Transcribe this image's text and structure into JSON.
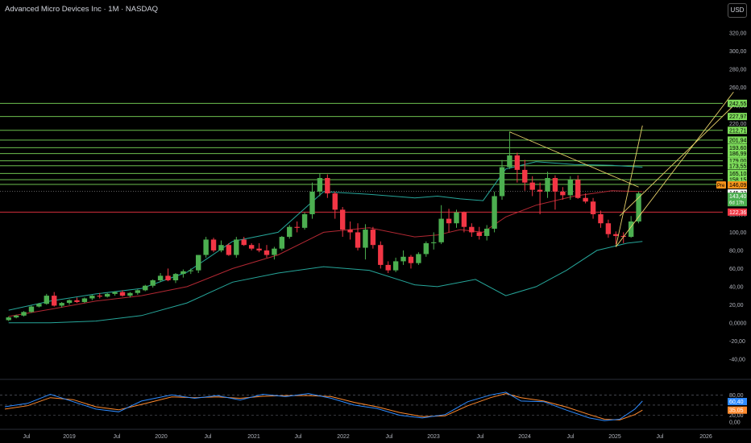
{
  "header": {
    "title": "Advanced Micro Devices Inc · 1M · NASDAQ",
    "currency": "USD"
  },
  "colors": {
    "background": "#000000",
    "up": "#4caf50",
    "down": "#f23645",
    "hline_green": "#7ddc5a",
    "hline_red": "#f23645",
    "ma": "#b22833",
    "band": "#26a69a",
    "trend": "#e8d16a",
    "rsi_k": "#2e8bff",
    "rsi_d": "#ff8a2e",
    "axis_text": "#b2b5be"
  },
  "chart_data": [
    {
      "type": "candlestick",
      "title": "Advanced Micro Devices Inc · 1M · NASDAQ",
      "y_axis_ticks": [
        "320,00",
        "300,00",
        "280,00",
        "260,00",
        "240,00",
        "220,00",
        "200,00",
        "180,00",
        "160,00",
        "140,00",
        "120,00",
        "100,00",
        "80,00",
        "60,00",
        "40,00",
        "20,00",
        "0,0000",
        "-20,00",
        "-40,00"
      ],
      "x_axis_ticks": [
        "Jul",
        "2019",
        "Jul",
        "2020",
        "Jul",
        "2021",
        "Jul",
        "2022",
        "Jul",
        "2023",
        "Jul",
        "2024",
        "Jul",
        "2025",
        "Jul",
        "2026"
      ],
      "ylim": [
        -50,
        330
      ],
      "horizontal_levels_green": [
        "242,55",
        "227,97",
        "212,71",
        "201,94",
        "193,60",
        "186,99",
        "179,00",
        "173,55",
        "165,10",
        "158,15",
        "152,94"
      ],
      "horizontal_level_red": "122,36",
      "price_badges": [
        {
          "label": "Pre",
          "value": "146,09",
          "color": "#f7931a"
        },
        {
          "value": "145,23",
          "color": "#ffffff"
        },
        {
          "value": "143,40",
          "sub": "6d 17h",
          "color": "#4caf50"
        },
        {
          "value": "122,36",
          "color": "#f23645"
        }
      ],
      "candles": [
        [
          0.5,
          3,
          7,
          2,
          6
        ],
        [
          1.5,
          6,
          9,
          5,
          8
        ],
        [
          2.5,
          8,
          13,
          7,
          12
        ],
        [
          3.5,
          12,
          19,
          11,
          18
        ],
        [
          4.5,
          18,
          22,
          17,
          21
        ],
        [
          5.5,
          21,
          32,
          20,
          30
        ],
        [
          6.5,
          30,
          34,
          18,
          19
        ],
        [
          7.5,
          19,
          23,
          17,
          22
        ],
        [
          8.5,
          22,
          26,
          20,
          25
        ],
        [
          9.5,
          25,
          28,
          22,
          23
        ],
        [
          10.5,
          23,
          28,
          22,
          27
        ],
        [
          11.5,
          27,
          31,
          25,
          30
        ],
        [
          12.5,
          30,
          33,
          27,
          29
        ],
        [
          13.5,
          29,
          33,
          28,
          32
        ],
        [
          14.5,
          32,
          35,
          30,
          34
        ],
        [
          15.5,
          34,
          36,
          29,
          30
        ],
        [
          16.5,
          30,
          34,
          28,
          33
        ],
        [
          17.5,
          33,
          37,
          31,
          36
        ],
        [
          18.5,
          36,
          42,
          35,
          41
        ],
        [
          19.5,
          41,
          48,
          39,
          47
        ],
        [
          20.5,
          47,
          55,
          45,
          52
        ],
        [
          21.5,
          52,
          60,
          46,
          47
        ],
        [
          22.5,
          47,
          55,
          44,
          54
        ],
        [
          23.5,
          54,
          59,
          50,
          57
        ],
        [
          24.5,
          57,
          60,
          54,
          58
        ],
        [
          25.5,
          58,
          75,
          55,
          75
        ],
        [
          26.5,
          75,
          95,
          72,
          92
        ],
        [
          27.5,
          92,
          94,
          78,
          80
        ],
        [
          28.5,
          80,
          91,
          78,
          86
        ],
        [
          29.5,
          86,
          88,
          74,
          75
        ],
        [
          30.5,
          75,
          95,
          72,
          92
        ],
        [
          31.5,
          92,
          95,
          85,
          86
        ],
        [
          32.5,
          86,
          88,
          80,
          82
        ],
        [
          33.5,
          82,
          88,
          78,
          80
        ],
        [
          34.5,
          80,
          86,
          72,
          75
        ],
        [
          35.5,
          75,
          84,
          70,
          82
        ],
        [
          36.5,
          82,
          96,
          80,
          95
        ],
        [
          37.5,
          95,
          108,
          93,
          106
        ],
        [
          38.5,
          106,
          112,
          100,
          105
        ],
        [
          39.5,
          105,
          122,
          103,
          120
        ],
        [
          40.5,
          120,
          155,
          115,
          145
        ],
        [
          41.5,
          145,
          165,
          140,
          160
        ],
        [
          42.5,
          160,
          164,
          138,
          143
        ],
        [
          43.5,
          143,
          145,
          115,
          125
        ],
        [
          44.5,
          125,
          128,
          95,
          103
        ],
        [
          45.5,
          103,
          112,
          92,
          100
        ],
        [
          46.5,
          100,
          110,
          80,
          83
        ],
        [
          47.5,
          83,
          109,
          70,
          103
        ],
        [
          48.5,
          103,
          106,
          82,
          86
        ],
        [
          49.5,
          86,
          90,
          60,
          64
        ],
        [
          50.5,
          64,
          68,
          55,
          58
        ],
        [
          51.5,
          58,
          72,
          56,
          68
        ],
        [
          52.5,
          68,
          80,
          64,
          73
        ],
        [
          53.5,
          73,
          75,
          60,
          66
        ],
        [
          54.5,
          66,
          78,
          64,
          76
        ],
        [
          55.5,
          76,
          90,
          73,
          88
        ],
        [
          56.5,
          88,
          100,
          81,
          89
        ],
        [
          57.5,
          89,
          130,
          87,
          115
        ],
        [
          58.5,
          115,
          126,
          100,
          110
        ],
        [
          59.5,
          110,
          125,
          105,
          122
        ],
        [
          60.5,
          122,
          123,
          100,
          106
        ],
        [
          61.5,
          106,
          110,
          95,
          100
        ],
        [
          62.5,
          100,
          106,
          92,
          96
        ],
        [
          63.5,
          96,
          108,
          91,
          104
        ],
        [
          64.5,
          104,
          145,
          100,
          140
        ],
        [
          65.5,
          140,
          180,
          136,
          172
        ],
        [
          66.5,
          172,
          211,
          170,
          185
        ],
        [
          67.5,
          185,
          188,
          155,
          169
        ],
        [
          68.5,
          169,
          180,
          146,
          155
        ],
        [
          69.5,
          155,
          162,
          140,
          147
        ],
        [
          70.5,
          147,
          155,
          120,
          145
        ],
        [
          71.5,
          145,
          167,
          138,
          160
        ],
        [
          72.5,
          160,
          163,
          125,
          145
        ],
        [
          73.5,
          145,
          150,
          136,
          141
        ],
        [
          74.5,
          141,
          162,
          136,
          158
        ],
        [
          75.5,
          158,
          163,
          137,
          138
        ],
        [
          76.5,
          138,
          143,
          132,
          134
        ],
        [
          77.5,
          134,
          138,
          115,
          120
        ],
        [
          78.5,
          120,
          124,
          105,
          110
        ],
        [
          79.5,
          110,
          114,
          94,
          98
        ],
        [
          80.5,
          98,
          101,
          87,
          96
        ],
        [
          81.5,
          96,
          100,
          88,
          95
        ],
        [
          82.5,
          95,
          118,
          94,
          112
        ],
        [
          83.5,
          112,
          145,
          110,
          143
        ]
      ],
      "moving_average": [
        [
          0.5,
          7
        ],
        [
          6,
          15
        ],
        [
          12,
          24
        ],
        [
          18,
          30
        ],
        [
          24,
          40
        ],
        [
          30,
          60
        ],
        [
          36,
          75
        ],
        [
          42,
          100
        ],
        [
          48,
          105
        ],
        [
          54,
          95
        ],
        [
          57,
          97
        ],
        [
          60,
          103
        ],
        [
          63,
          100
        ],
        [
          66,
          117
        ],
        [
          70,
          130
        ],
        [
          75,
          140
        ],
        [
          80,
          146
        ],
        [
          84,
          145
        ]
      ],
      "upper_band": [
        [
          0.5,
          14
        ],
        [
          6,
          24
        ],
        [
          12,
          32
        ],
        [
          18,
          38
        ],
        [
          24,
          56
        ],
        [
          30,
          90
        ],
        [
          36,
          100
        ],
        [
          42,
          145
        ],
        [
          48,
          142
        ],
        [
          54,
          138
        ],
        [
          57,
          140
        ],
        [
          60,
          137
        ],
        [
          63,
          135
        ],
        [
          66,
          170
        ],
        [
          70,
          178
        ],
        [
          75,
          175
        ],
        [
          80,
          174
        ],
        [
          84,
          172
        ]
      ],
      "lower_band": [
        [
          0.5,
          0
        ],
        [
          6,
          0
        ],
        [
          12,
          2
        ],
        [
          18,
          8
        ],
        [
          24,
          22
        ],
        [
          30,
          45
        ],
        [
          36,
          55
        ],
        [
          42,
          62
        ],
        [
          48,
          58
        ],
        [
          54,
          42
        ],
        [
          57,
          40
        ],
        [
          62,
          48
        ],
        [
          66,
          30
        ],
        [
          70,
          40
        ],
        [
          74,
          58
        ],
        [
          78,
          80
        ],
        [
          82,
          88
        ],
        [
          84,
          90
        ]
      ],
      "trendlines": [
        [
          [
            66.5,
            211
          ],
          [
            83.5,
            150
          ]
        ],
        [
          [
            80.5,
            84
          ],
          [
            84,
            218
          ]
        ],
        [
          [
            80.5,
            84
          ],
          [
            96,
            255
          ]
        ],
        [
          [
            81,
            118
          ],
          [
            96,
            240
          ]
        ]
      ]
    },
    {
      "type": "line",
      "indicator": "stochastic RSI",
      "y_axis_ticks": [
        "80,00",
        "60,40",
        "35,05",
        "20,00",
        "0,00"
      ],
      "ylim": [
        -5,
        95
      ],
      "levels": [
        80,
        50,
        20
      ],
      "badges": [
        {
          "value": "60,40",
          "color": "#2e8bff"
        },
        {
          "value": "35,05",
          "color": "#ff8a2e"
        }
      ],
      "series": [
        {
          "values": [
            [
              0,
              45
            ],
            [
              3,
              55
            ],
            [
              6,
              82
            ],
            [
              9,
              60
            ],
            [
              12,
              38
            ],
            [
              15,
              30
            ],
            [
              18,
              62
            ],
            [
              22,
              80
            ],
            [
              25,
              70
            ],
            [
              28,
              78
            ],
            [
              31,
              65
            ],
            [
              34,
              82
            ],
            [
              37,
              75
            ],
            [
              40,
              84
            ],
            [
              43,
              70
            ],
            [
              46,
              50
            ],
            [
              49,
              40
            ],
            [
              52,
              20
            ],
            [
              55,
              12
            ],
            [
              58,
              22
            ],
            [
              61,
              60
            ],
            [
              64,
              80
            ],
            [
              66,
              88
            ],
            [
              68,
              62
            ],
            [
              71,
              60
            ],
            [
              74,
              35
            ],
            [
              77,
              12
            ],
            [
              79,
              4
            ],
            [
              81,
              8
            ],
            [
              83,
              38
            ],
            [
              84,
              62
            ]
          ]
        },
        {
          "values": [
            [
              0,
              38
            ],
            [
              3,
              48
            ],
            [
              6,
              72
            ],
            [
              9,
              66
            ],
            [
              12,
              45
            ],
            [
              15,
              36
            ],
            [
              18,
              52
            ],
            [
              22,
              74
            ],
            [
              25,
              72
            ],
            [
              28,
              74
            ],
            [
              31,
              70
            ],
            [
              34,
              76
            ],
            [
              37,
              78
            ],
            [
              40,
              78
            ],
            [
              43,
              75
            ],
            [
              46,
              58
            ],
            [
              49,
              45
            ],
            [
              52,
              28
            ],
            [
              55,
              16
            ],
            [
              58,
              18
            ],
            [
              61,
              48
            ],
            [
              64,
              72
            ],
            [
              66,
              84
            ],
            [
              68,
              72
            ],
            [
              71,
              62
            ],
            [
              74,
              44
            ],
            [
              77,
              22
            ],
            [
              79,
              8
            ],
            [
              81,
              6
            ],
            [
              83,
              22
            ],
            [
              84,
              35
            ]
          ]
        }
      ]
    }
  ]
}
